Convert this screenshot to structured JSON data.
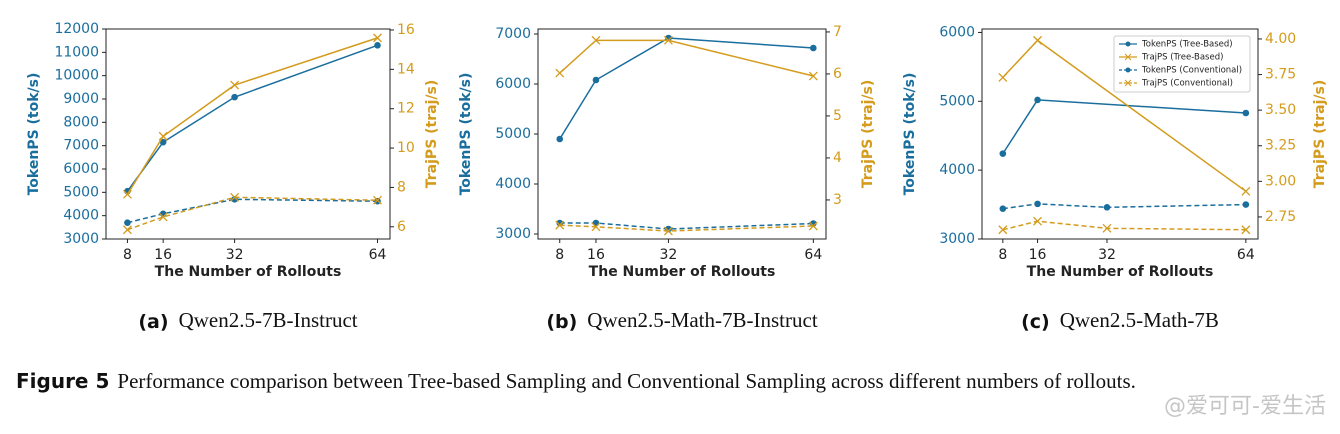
{
  "chart_data": [
    {
      "type": "line",
      "caption_label": "(a)",
      "caption": "Qwen2.5-7B-Instruct",
      "xlabel": "The Number of Rollouts",
      "ylabel": "TokenPS (tok/s)",
      "y2label": "TrajPS (traj/s)",
      "x": [
        8,
        16,
        32,
        64
      ],
      "xlim": [
        3.2,
        66.8
      ],
      "xticks": [
        8,
        16,
        32,
        64
      ],
      "ylim": [
        3000,
        12000
      ],
      "yticks": [
        3000,
        4000,
        5000,
        6000,
        7000,
        8000,
        9000,
        10000,
        11000,
        12000
      ],
      "y2lim": [
        5.38,
        16.05
      ],
      "y2ticks": [
        6,
        8,
        10,
        12,
        14,
        16
      ],
      "ycolor": "#1a6e9e",
      "y2color": "#d49b1c",
      "series": [
        {
          "color": "#1a6e9e",
          "marker": "o",
          "dashed": false,
          "values": [
            5050,
            7150,
            9080,
            11300
          ]
        },
        {
          "color": "#d49b1c",
          "marker": "x",
          "dashed": false,
          "axis": "y2",
          "values": [
            7.65,
            10.6,
            13.2,
            15.6
          ]
        },
        {
          "color": "#1a6e9e",
          "marker": "o",
          "dashed": true,
          "values": [
            3700,
            4080,
            4700,
            4620
          ]
        },
        {
          "color": "#d49b1c",
          "marker": "x",
          "dashed": true,
          "axis": "y2",
          "values": [
            5.85,
            6.5,
            7.5,
            7.35
          ]
        }
      ]
    },
    {
      "type": "line",
      "caption_label": "(b)",
      "caption": "Qwen2.5-Math-7B-Instruct",
      "xlabel": "The Number of Rollouts",
      "ylabel": "TokenPS (tok/s)",
      "y2label": "TrajPS (traj/s)",
      "x": [
        8,
        16,
        32,
        64
      ],
      "xlim": [
        3.2,
        66.8
      ],
      "xticks": [
        8,
        16,
        32,
        64
      ],
      "ylim": [
        2900,
        7100
      ],
      "yticks": [
        3000,
        4000,
        5000,
        6000,
        7000
      ],
      "y2lim": [
        2.07,
        7.07
      ],
      "y2ticks": [
        3,
        4,
        5,
        6,
        7
      ],
      "ycolor": "#1a6e9e",
      "y2color": "#d49b1c",
      "series": [
        {
          "color": "#1a6e9e",
          "marker": "o",
          "dashed": false,
          "values": [
            4900,
            6080,
            6920,
            6720
          ]
        },
        {
          "color": "#d49b1c",
          "marker": "x",
          "dashed": false,
          "axis": "y2",
          "values": [
            6.02,
            6.8,
            6.8,
            5.95
          ]
        },
        {
          "color": "#1a6e9e",
          "marker": "o",
          "dashed": true,
          "values": [
            3220,
            3220,
            3100,
            3210
          ]
        },
        {
          "color": "#d49b1c",
          "marker": "x",
          "dashed": true,
          "axis": "y2",
          "values": [
            2.4,
            2.36,
            2.26,
            2.38
          ]
        }
      ]
    },
    {
      "type": "line",
      "caption_label": "(c)",
      "caption": "Qwen2.5-Math-7B",
      "xlabel": "The Number of Rollouts",
      "ylabel": "TokenPS (tok/s)",
      "y2label": "TrajPS (traj/s)",
      "x": [
        8,
        16,
        32,
        64
      ],
      "xlim": [
        3.2,
        66.8
      ],
      "xticks": [
        8,
        16,
        32,
        64
      ],
      "ylim": [
        3000,
        6050
      ],
      "yticks": [
        3000,
        4000,
        5000,
        6000
      ],
      "y2lim": [
        2.595,
        4.07
      ],
      "y2ticks": [
        2.75,
        {
          "value": 3,
          "label": "3.00"
        },
        3.25,
        {
          "value": 3.5,
          "label": "3.50"
        },
        3.75,
        {
          "value": 4,
          "label": "4.00"
        }
      ],
      "ycolor": "#1a6e9e",
      "y2color": "#d49b1c",
      "legend": "upper right",
      "series": [
        {
          "name": "TokenPS (Tree-Based)",
          "color": "#1a6e9e",
          "marker": "o",
          "dashed": false,
          "x": [
            8,
            16,
            64
          ],
          "values": [
            4240,
            5020,
            4830
          ]
        },
        {
          "name": "TrajPS (Tree-Based)",
          "color": "#d49b1c",
          "marker": "x",
          "dashed": false,
          "axis": "y2",
          "x": [
            8,
            16,
            64
          ],
          "values": [
            3.73,
            3.99,
            2.93
          ]
        },
        {
          "name": "TokenPS (Conventional)",
          "color": "#1a6e9e",
          "marker": "o",
          "dashed": true,
          "values": [
            3440,
            3510,
            3460,
            3500
          ]
        },
        {
          "name": "TrajPS (Conventional)",
          "color": "#d49b1c",
          "marker": "x",
          "dashed": true,
          "axis": "y2",
          "values": [
            2.66,
            2.72,
            2.67,
            2.66
          ]
        }
      ]
    }
  ],
  "figure": {
    "label": "Figure 5",
    "caption": "Performance comparison between Tree-based Sampling and Conventional Sampling across different numbers of rollouts."
  },
  "watermark": "@爱可可-爱生活"
}
